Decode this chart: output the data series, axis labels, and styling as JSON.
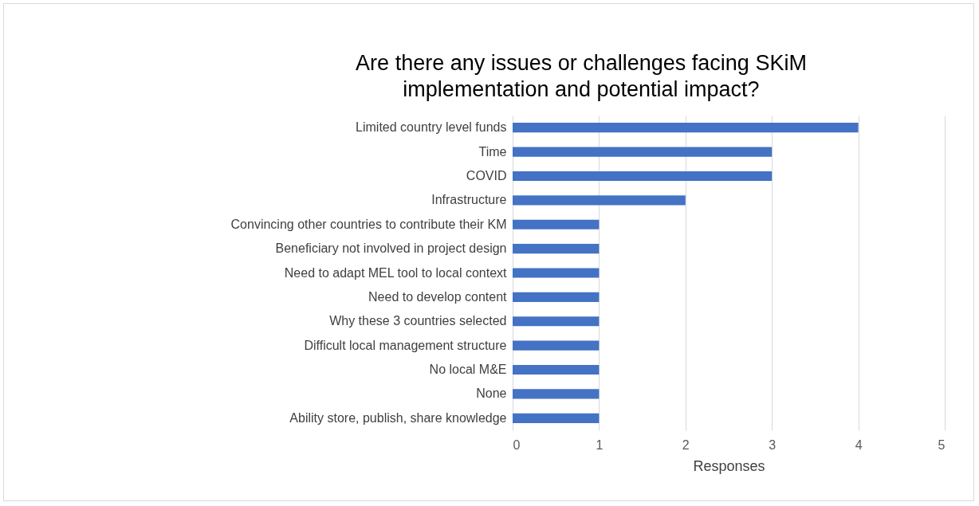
{
  "chart_data": {
    "type": "bar",
    "orientation": "horizontal",
    "title": [
      "Are there any issues or challenges  facing SKiM",
      "implementation  and potential impact?"
    ],
    "xlabel": "Responses",
    "categories": [
      "Limited country level funds",
      "Time",
      "COVID",
      "Infrastructure",
      "Convincing other countries to contribute their KM",
      "Beneficiary not involved in project design",
      "Need to adapt MEL tool to local context",
      "Need to develop content",
      "Why these 3 countries selected",
      "Difficult local management structure",
      "No local M&E",
      "None",
      "Ability store, publish, share knowledge"
    ],
    "values": [
      4,
      3,
      3,
      2,
      1,
      1,
      1,
      1,
      1,
      1,
      1,
      1,
      1
    ],
    "color": "#4472c4",
    "xlim": [
      0,
      5
    ],
    "xticks": [
      0,
      1,
      2,
      3,
      4,
      5
    ],
    "grid": true
  }
}
